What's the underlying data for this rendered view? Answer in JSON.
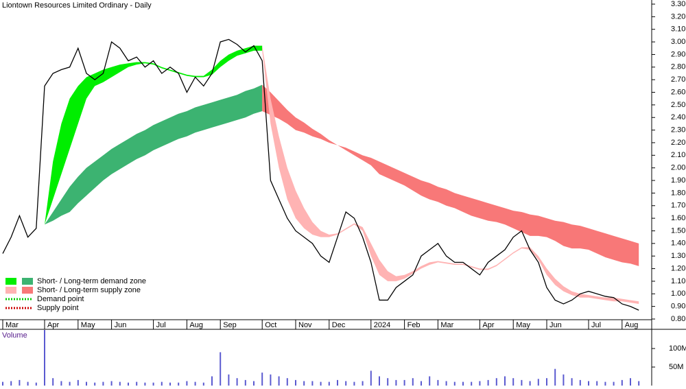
{
  "chart_data": [
    {
      "type": "line",
      "title": "Liontown Resources Limited Ordinary - Daily",
      "categories": [
        "Mar",
        null,
        null,
        null,
        null,
        "Apr",
        null,
        null,
        null,
        "May",
        null,
        null,
        null,
        "Jun",
        null,
        null,
        null,
        null,
        "Jul",
        null,
        null,
        null,
        "Aug",
        null,
        null,
        null,
        "Sep",
        null,
        null,
        null,
        null,
        "Oct",
        null,
        null,
        null,
        "Nov",
        null,
        null,
        null,
        "Dec",
        null,
        null,
        null,
        null,
        "2024",
        null,
        null,
        null,
        "Feb",
        null,
        null,
        null,
        "Mar",
        null,
        null,
        null,
        null,
        "Apr",
        null,
        null,
        null,
        "May",
        null,
        null,
        null,
        "Jun",
        null,
        null,
        null,
        null,
        "Jul",
        null,
        null,
        null,
        "Aug",
        null,
        null
      ],
      "series": [
        {
          "color": "#000000",
          "values": [
            1.32,
            1.45,
            1.62,
            1.45,
            1.52,
            2.65,
            2.75,
            2.78,
            2.8,
            2.95,
            2.75,
            2.7,
            2.75,
            3.0,
            2.95,
            2.85,
            2.88,
            2.8,
            2.85,
            2.75,
            2.8,
            2.75,
            2.6,
            2.72,
            2.65,
            2.75,
            3.0,
            3.02,
            2.98,
            2.92,
            2.97,
            2.85,
            1.9,
            1.75,
            1.6,
            1.5,
            1.45,
            1.4,
            1.3,
            1.25,
            1.45,
            1.65,
            1.6,
            1.45,
            1.25,
            0.95,
            0.95,
            1.05,
            1.1,
            1.15,
            1.3,
            1.35,
            1.4,
            1.3,
            1.25,
            1.25,
            1.2,
            1.15,
            1.25,
            1.3,
            1.35,
            1.45,
            1.5,
            1.35,
            1.25,
            1.05,
            0.95,
            0.92,
            0.95,
            1.0,
            1.02,
            1.0,
            0.98,
            0.97,
            0.92,
            0.9,
            0.87
          ]
        }
      ],
      "bands": [
        {
          "color": "#3cb371",
          "upper": [
            null,
            null,
            null,
            null,
            null,
            1.55,
            1.65,
            1.75,
            1.85,
            1.93,
            2.0,
            2.05,
            2.1,
            2.15,
            2.19,
            2.23,
            2.27,
            2.3,
            2.34,
            2.37,
            2.4,
            2.43,
            2.45,
            2.48,
            2.5,
            2.52,
            2.54,
            2.56,
            2.58,
            2.61,
            2.63,
            2.66,
            null,
            null,
            null,
            null,
            null,
            null,
            null,
            null,
            null,
            null,
            null,
            null,
            null,
            null,
            null,
            null,
            null,
            null,
            null,
            null,
            null,
            null,
            null,
            null,
            null,
            null,
            null,
            null,
            null,
            null,
            null,
            null,
            null,
            null,
            null,
            null,
            null,
            null,
            null,
            null,
            null,
            null,
            null,
            null,
            null
          ],
          "lower": [
            null,
            null,
            null,
            null,
            null,
            1.55,
            1.58,
            1.62,
            1.65,
            1.72,
            1.78,
            1.84,
            1.9,
            1.95,
            1.99,
            2.03,
            2.07,
            2.1,
            2.14,
            2.17,
            2.2,
            2.23,
            2.25,
            2.28,
            2.3,
            2.32,
            2.34,
            2.36,
            2.38,
            2.4,
            2.43,
            2.45,
            null,
            null,
            null,
            null,
            null,
            null,
            null,
            null,
            null,
            null,
            null,
            null,
            null,
            null,
            null,
            null,
            null,
            null,
            null,
            null,
            null,
            null,
            null,
            null,
            null,
            null,
            null,
            null,
            null,
            null,
            null,
            null,
            null,
            null,
            null,
            null,
            null,
            null,
            null,
            null,
            null,
            null,
            null,
            null,
            null
          ]
        },
        {
          "color": "#f87878",
          "upper": [
            null,
            null,
            null,
            null,
            null,
            null,
            null,
            null,
            null,
            null,
            null,
            null,
            null,
            null,
            null,
            null,
            null,
            null,
            null,
            null,
            null,
            null,
            null,
            null,
            null,
            null,
            null,
            null,
            null,
            null,
            null,
            2.66,
            2.6,
            2.53,
            2.46,
            2.4,
            2.36,
            2.31,
            2.27,
            2.22,
            2.18,
            2.16,
            2.13,
            2.1,
            2.08,
            2.05,
            2.02,
            1.99,
            1.96,
            1.93,
            1.9,
            1.88,
            1.85,
            1.83,
            1.8,
            1.78,
            1.76,
            1.74,
            1.72,
            1.7,
            1.68,
            1.66,
            1.65,
            1.63,
            1.62,
            1.6,
            1.58,
            1.57,
            1.55,
            1.54,
            1.52,
            1.5,
            1.48,
            1.46,
            1.44,
            1.42,
            1.4
          ],
          "lower": [
            null,
            null,
            null,
            null,
            null,
            null,
            null,
            null,
            null,
            null,
            null,
            null,
            null,
            null,
            null,
            null,
            null,
            null,
            null,
            null,
            null,
            null,
            null,
            null,
            null,
            null,
            null,
            null,
            null,
            null,
            null,
            2.45,
            2.42,
            2.39,
            2.35,
            2.3,
            2.28,
            2.25,
            2.23,
            2.2,
            2.18,
            2.14,
            2.1,
            2.06,
            2.02,
            1.95,
            1.92,
            1.89,
            1.86,
            1.82,
            1.78,
            1.75,
            1.73,
            1.7,
            1.68,
            1.65,
            1.62,
            1.6,
            1.58,
            1.57,
            1.55,
            1.52,
            1.49,
            1.46,
            1.46,
            1.45,
            1.42,
            1.38,
            1.36,
            1.36,
            1.35,
            1.32,
            1.29,
            1.27,
            1.25,
            1.24,
            1.22
          ]
        },
        {
          "color": "#00ee00",
          "upper": [
            null,
            null,
            null,
            null,
            null,
            1.55,
            2.05,
            2.35,
            2.55,
            2.65,
            2.72,
            2.75,
            2.78,
            2.8,
            2.82,
            2.83,
            2.84,
            2.84,
            2.83,
            2.8,
            2.78,
            2.76,
            2.74,
            2.73,
            2.73,
            2.78,
            2.85,
            2.9,
            2.93,
            2.95,
            2.97,
            2.97,
            null,
            null,
            null,
            null,
            null,
            null,
            null,
            null,
            null,
            null,
            null,
            null,
            null,
            null,
            null,
            null,
            null,
            null,
            null,
            null,
            null,
            null,
            null,
            null,
            null,
            null,
            null,
            null,
            null,
            null,
            null,
            null,
            null,
            null,
            null,
            null,
            null,
            null,
            null,
            null,
            null,
            null,
            null,
            null,
            null
          ],
          "lower": [
            null,
            null,
            null,
            null,
            null,
            1.55,
            1.75,
            1.95,
            2.15,
            2.35,
            2.55,
            2.65,
            2.68,
            2.72,
            2.76,
            2.8,
            2.82,
            2.83,
            2.82,
            2.79,
            2.77,
            2.75,
            2.73,
            2.72,
            2.72,
            2.74,
            2.8,
            2.85,
            2.89,
            2.91,
            2.93,
            2.93,
            null,
            null,
            null,
            null,
            null,
            null,
            null,
            null,
            null,
            null,
            null,
            null,
            null,
            null,
            null,
            null,
            null,
            null,
            null,
            null,
            null,
            null,
            null,
            null,
            null,
            null,
            null,
            null,
            null,
            null,
            null,
            null,
            null,
            null,
            null,
            null,
            null,
            null,
            null,
            null,
            null,
            null,
            null,
            null,
            null
          ]
        },
        {
          "color": "#ffb3b3",
          "upper": [
            null,
            null,
            null,
            null,
            null,
            null,
            null,
            null,
            null,
            null,
            null,
            null,
            null,
            null,
            null,
            null,
            null,
            null,
            null,
            null,
            null,
            null,
            null,
            null,
            null,
            null,
            null,
            null,
            null,
            null,
            null,
            2.97,
            2.55,
            2.25,
            2.0,
            1.82,
            1.68,
            1.57,
            1.5,
            1.47,
            1.48,
            1.52,
            1.56,
            1.53,
            1.4,
            1.27,
            1.18,
            1.14,
            1.15,
            1.18,
            1.22,
            1.25,
            1.26,
            1.25,
            1.24,
            1.24,
            1.22,
            1.2,
            1.2,
            1.23,
            1.28,
            1.33,
            1.37,
            1.37,
            1.3,
            1.2,
            1.12,
            1.06,
            1.02,
            1.0,
            0.99,
            0.98,
            0.97,
            0.97,
            0.96,
            0.95,
            0.94
          ],
          "lower": [
            null,
            null,
            null,
            null,
            null,
            null,
            null,
            null,
            null,
            null,
            null,
            null,
            null,
            null,
            null,
            null,
            null,
            null,
            null,
            null,
            null,
            null,
            null,
            null,
            null,
            null,
            null,
            null,
            null,
            null,
            null,
            2.93,
            2.35,
            2.0,
            1.75,
            1.6,
            1.52,
            1.47,
            1.45,
            1.45,
            1.47,
            1.51,
            1.55,
            1.5,
            1.3,
            1.15,
            1.1,
            1.1,
            1.12,
            1.16,
            1.2,
            1.23,
            1.25,
            1.24,
            1.23,
            1.23,
            1.21,
            1.19,
            1.19,
            1.22,
            1.27,
            1.32,
            1.36,
            1.35,
            1.27,
            1.15,
            1.07,
            1.02,
            0.99,
            0.97,
            0.97,
            0.96,
            0.95,
            0.94,
            0.94,
            0.93,
            0.92
          ]
        }
      ],
      "legend": [
        {
          "label": "Short- / Long-term demand zone",
          "colors": [
            "#00ee00",
            "#3cb371"
          ],
          "style": "box"
        },
        {
          "label": "Short- / Long-term supply zone",
          "colors": [
            "#ffb3b3",
            "#f87878"
          ],
          "style": "box"
        },
        {
          "label": "Demand point",
          "colors": [
            "#00cc00"
          ],
          "style": "dotted"
        },
        {
          "label": "Supply point",
          "colors": [
            "#cc0000"
          ],
          "style": "dotted"
        }
      ],
      "ylim": [
        0.8,
        3.3
      ],
      "yticks": [
        {
          "value": 0.8,
          "label": "0.80"
        },
        {
          "value": 0.9,
          "label": "0.90"
        },
        {
          "value": 1.0,
          "label": "1.00"
        },
        {
          "value": 1.1,
          "label": "1.10"
        },
        {
          "value": 1.2,
          "label": "1.20"
        },
        {
          "value": 1.3,
          "label": "1.30"
        },
        {
          "value": 1.4,
          "label": "1.40"
        },
        {
          "value": 1.5,
          "label": "1.50"
        },
        {
          "value": 1.6,
          "label": "1.60"
        },
        {
          "value": 1.7,
          "label": "1.70"
        },
        {
          "value": 1.8,
          "label": "1.80"
        },
        {
          "value": 1.9,
          "label": "1.90"
        },
        {
          "value": 2.0,
          "label": "2.00"
        },
        {
          "value": 2.1,
          "label": "2.10"
        },
        {
          "value": 2.2,
          "label": "2.20"
        },
        {
          "value": 2.3,
          "label": "2.30"
        },
        {
          "value": 2.4,
          "label": "2.40"
        },
        {
          "value": 2.5,
          "label": "2.50"
        },
        {
          "value": 2.6,
          "label": "2.60"
        },
        {
          "value": 2.7,
          "label": "2.70"
        },
        {
          "value": 2.8,
          "label": "2.80"
        },
        {
          "value": 2.9,
          "label": "2.90"
        },
        {
          "value": 3.0,
          "label": "3.00"
        },
        {
          "value": 3.1,
          "label": "3.10"
        },
        {
          "value": 3.2,
          "label": "3.20"
        },
        {
          "value": 3.3,
          "label": "3.30"
        }
      ]
    },
    {
      "type": "bar",
      "title": "Volume",
      "color": "#5a5ad0",
      "values": [
        10,
        12,
        15,
        10,
        8,
        150,
        20,
        12,
        10,
        15,
        10,
        8,
        10,
        12,
        10,
        8,
        10,
        8,
        8,
        10,
        8,
        8,
        12,
        10,
        8,
        25,
        90,
        30,
        20,
        15,
        12,
        35,
        30,
        25,
        20,
        15,
        12,
        12,
        10,
        10,
        15,
        12,
        10,
        12,
        40,
        25,
        20,
        15,
        15,
        20,
        12,
        25,
        15,
        12,
        10,
        10,
        10,
        12,
        15,
        20,
        25,
        20,
        15,
        12,
        18,
        20,
        45,
        30,
        20,
        15,
        12,
        12,
        10,
        10,
        15,
        20,
        12
      ],
      "ylim": [
        0,
        150
      ],
      "yticks": [
        {
          "value": 50,
          "label": "50M"
        },
        {
          "value": 100,
          "label": "100M"
        }
      ]
    }
  ]
}
